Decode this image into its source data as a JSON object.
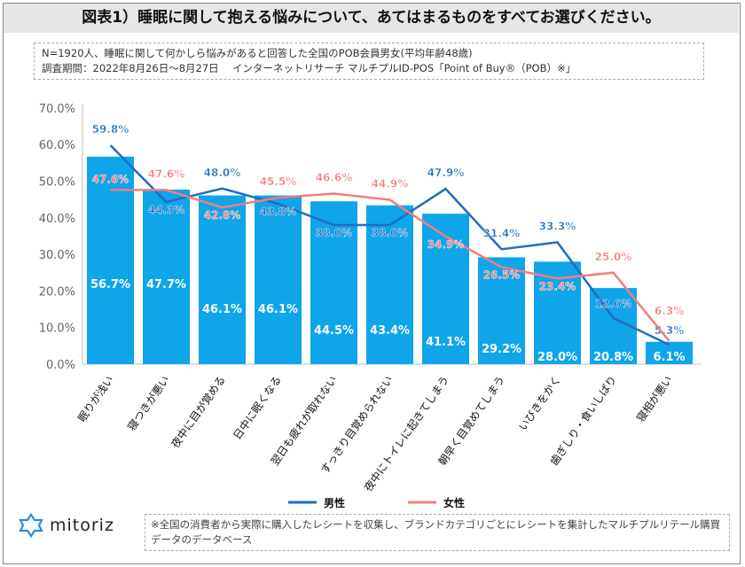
{
  "title": "図表1）睡眠に関して抱える悩みについて、あてはまるものをすべてお選びください。",
  "note": {
    "line1": "N=1920人、睡眠に関して何かしら悩みがあると回答した全国のPOB会員男女(平均年齢48歳)",
    "line2": "調査期間：2022年8月26日～8月27日　 インターネットリサーチ マルチプルID-POS「Point of Buy®（POB）※」"
  },
  "chart_data": {
    "type": "bar+line",
    "categories": [
      "眠りが浅い",
      "寝つきが悪い",
      "夜中に目が覚める",
      "日中に眠くなる",
      "翌日も疲れが取れない",
      "すっきり目覚められない",
      "夜中にトイレに起きてしまう",
      "朝早く目覚めてしまう",
      "いびきをかく",
      "歯ぎしり・食いしばり",
      "寝相が悪い"
    ],
    "bar_values": [
      56.7,
      47.7,
      46.1,
      46.1,
      44.5,
      43.4,
      41.1,
      29.2,
      28.0,
      20.8,
      6.1
    ],
    "series": [
      {
        "name": "男性",
        "type": "line",
        "color": "#1f6fbf",
        "values": [
          59.8,
          44.3,
          48.0,
          43.8,
          38.0,
          38.0,
          47.9,
          31.4,
          33.3,
          12.6,
          5.3
        ]
      },
      {
        "name": "女性",
        "type": "line",
        "color": "#f47c7c",
        "values": [
          47.6,
          47.6,
          42.8,
          45.5,
          46.6,
          44.9,
          34.9,
          26.5,
          23.4,
          25.0,
          6.3
        ]
      }
    ],
    "bar_color": "#0ea5e9",
    "ylim": [
      0,
      70
    ],
    "yticks": [
      "0.0%",
      "10.0%",
      "20.0%",
      "30.0%",
      "40.0%",
      "50.0%",
      "60.0%",
      "70.0%"
    ],
    "grid": false,
    "legend": "bottom"
  },
  "logo": "mitoriz",
  "footnote": "※全国の消費者から実際に購入したレシートを収集し、ブランドカテゴリごとにレシートを集計したマルチプルリテール購買データのデータベース"
}
